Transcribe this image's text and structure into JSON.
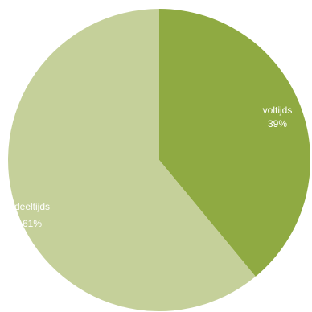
{
  "chart_data": {
    "type": "pie",
    "categories": [
      "voltijds",
      "deeltijds"
    ],
    "values": [
      39,
      61
    ],
    "labels": [
      {
        "name": "voltijds",
        "value_text": "39%"
      },
      {
        "name": "deeltijds",
        "value_text": "61%"
      }
    ],
    "colors": [
      "#8faa42",
      "#c5d09a"
    ],
    "start": "12 o'clock",
    "direction": "clockwise"
  }
}
